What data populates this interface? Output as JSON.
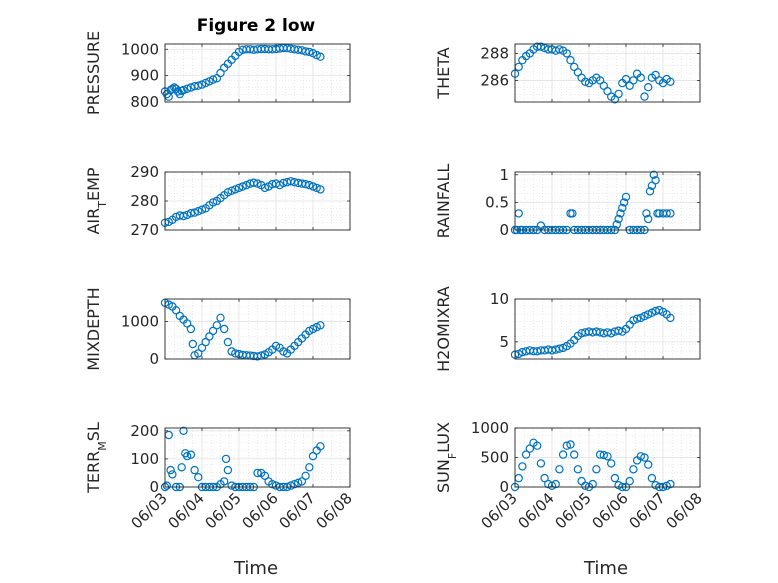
{
  "figure": {
    "title": "Figure 2 low",
    "marker_color": "#0072BD",
    "x_tick_labels": [
      "06/03",
      "06/04",
      "06/05",
      "06/06",
      "06/07",
      "06/08"
    ],
    "x_label": "Time"
  },
  "chart_data": [
    {
      "type": "scatter",
      "title": "Figure 2 low",
      "ylabel": "PRESSURE",
      "ylim": [
        800,
        1020
      ],
      "yticks": [
        800,
        900,
        1000
      ],
      "grid": true,
      "x_unit": "days since 06/03 00:00 (reading convention: 0 = 06/03, 1 = 06/04, ...)",
      "x": [
        0.0,
        0.05,
        0.1,
        0.15,
        0.2,
        0.25,
        0.3,
        0.35,
        0.4,
        0.45,
        0.5,
        0.6,
        0.7,
        0.8,
        0.9,
        1.0,
        1.1,
        1.2,
        1.3,
        1.4,
        1.5,
        1.6,
        1.7,
        1.8,
        1.9,
        2.0,
        2.1,
        2.2,
        2.3,
        2.4,
        2.5,
        2.6,
        2.7,
        2.8,
        2.9,
        3.0,
        3.1,
        3.2,
        3.3,
        3.4,
        3.5,
        3.6,
        3.7,
        3.8,
        3.9,
        4.0,
        4.1,
        4.2
      ],
      "y": [
        840,
        830,
        820,
        845,
        850,
        855,
        850,
        840,
        830,
        842,
        845,
        850,
        855,
        860,
        862,
        866,
        872,
        878,
        885,
        890,
        910,
        930,
        945,
        960,
        975,
        990,
        998,
        1000,
        1000,
        998,
        1000,
        1001,
        1001,
        1000,
        1000,
        1001,
        1003,
        1005,
        1004,
        1002,
        1000,
        998,
        996,
        992,
        990,
        985,
        978,
        972
      ]
    },
    {
      "type": "scatter",
      "ylabel": "THETA",
      "ylim": [
        284.4,
        288.7
      ],
      "yticks": [
        286,
        288
      ],
      "grid": true,
      "x": [
        0.0,
        0.1,
        0.2,
        0.3,
        0.4,
        0.5,
        0.6,
        0.7,
        0.8,
        0.9,
        1.0,
        1.1,
        1.2,
        1.3,
        1.4,
        1.5,
        1.6,
        1.7,
        1.8,
        1.9,
        2.0,
        2.1,
        2.2,
        2.3,
        2.4,
        2.5,
        2.6,
        2.7,
        2.8,
        2.9,
        3.0,
        3.1,
        3.2,
        3.3,
        3.4,
        3.5,
        3.6,
        3.7,
        3.8,
        3.9,
        4.0,
        4.1,
        4.2
      ],
      "y": [
        286.5,
        287.0,
        287.5,
        287.8,
        288.0,
        288.3,
        288.5,
        288.5,
        288.4,
        288.3,
        288.3,
        288.2,
        288.3,
        288.2,
        288.0,
        287.5,
        287.0,
        286.6,
        286.2,
        285.9,
        285.8,
        286.0,
        286.2,
        286.0,
        285.6,
        285.2,
        284.8,
        284.6,
        285.0,
        285.8,
        286.1,
        285.6,
        286.0,
        286.5,
        286.2,
        284.8,
        285.5,
        286.2,
        286.4,
        286.0,
        285.8,
        286.1,
        285.9
      ]
    },
    {
      "type": "scatter",
      "ylabel": "AIR_TEMP",
      "ylim": [
        270,
        290
      ],
      "yticks": [
        270,
        280,
        290
      ],
      "grid": true,
      "x": [
        0.0,
        0.1,
        0.2,
        0.3,
        0.4,
        0.5,
        0.6,
        0.7,
        0.8,
        0.9,
        1.0,
        1.1,
        1.2,
        1.3,
        1.4,
        1.5,
        1.6,
        1.7,
        1.8,
        1.9,
        2.0,
        2.1,
        2.2,
        2.3,
        2.4,
        2.5,
        2.6,
        2.7,
        2.8,
        2.9,
        3.0,
        3.1,
        3.2,
        3.3,
        3.4,
        3.5,
        3.6,
        3.7,
        3.8,
        3.9,
        4.0,
        4.1,
        4.2
      ],
      "y": [
        272.5,
        272.8,
        273.5,
        274.5,
        275,
        274.8,
        275.2,
        275.8,
        276,
        276.5,
        277,
        277.5,
        278.5,
        279.5,
        280,
        281,
        282,
        283,
        283.5,
        284,
        284.5,
        285,
        285.5,
        286,
        286.3,
        286,
        285.5,
        284.5,
        285,
        285.8,
        286,
        285.5,
        286.2,
        286.5,
        286.8,
        286.5,
        286.2,
        286,
        285.8,
        285.5,
        285,
        284.5,
        284
      ]
    },
    {
      "type": "scatter",
      "ylabel": "RAINFALL",
      "ylim": [
        0,
        1.05
      ],
      "yticks": [
        0,
        0.5,
        1
      ],
      "grid": true,
      "x": [
        0.0,
        0.05,
        0.1,
        0.15,
        0.2,
        0.3,
        0.4,
        0.5,
        0.6,
        0.7,
        0.8,
        0.9,
        1.0,
        1.1,
        1.2,
        1.3,
        1.4,
        1.5,
        1.55,
        1.6,
        1.7,
        1.8,
        1.9,
        2.0,
        2.1,
        2.2,
        2.3,
        2.4,
        2.5,
        2.6,
        2.7,
        2.75,
        2.8,
        2.85,
        2.9,
        2.95,
        3.0,
        3.1,
        3.2,
        3.3,
        3.4,
        3.5,
        3.55,
        3.6,
        3.65,
        3.7,
        3.75,
        3.8,
        3.85,
        3.9,
        4.0,
        4.1,
        4.2
      ],
      "y": [
        0,
        0,
        0.3,
        0,
        0,
        0,
        0,
        0,
        0,
        0.08,
        0,
        0,
        0,
        0,
        0,
        0,
        0,
        0.3,
        0.3,
        0,
        0,
        0,
        0,
        0,
        0,
        0,
        0,
        0,
        0,
        0,
        0,
        0.1,
        0.2,
        0.3,
        0.4,
        0.5,
        0.6,
        0,
        0,
        0,
        0,
        0,
        0.3,
        0.2,
        0.7,
        0.8,
        1.0,
        0.9,
        0.3,
        0.3,
        0.3,
        0.3,
        0.3
      ]
    },
    {
      "type": "scatter",
      "ylabel": "MIXDEPTH",
      "ylim": [
        0,
        1600
      ],
      "yticks": [
        0,
        1000
      ],
      "grid": true,
      "x": [
        0.0,
        0.1,
        0.2,
        0.3,
        0.4,
        0.5,
        0.6,
        0.7,
        0.75,
        0.8,
        0.9,
        1.0,
        1.1,
        1.2,
        1.3,
        1.4,
        1.5,
        1.6,
        1.7,
        1.8,
        1.9,
        2.0,
        2.1,
        2.2,
        2.3,
        2.4,
        2.5,
        2.6,
        2.7,
        2.8,
        2.9,
        3.0,
        3.1,
        3.2,
        3.3,
        3.4,
        3.5,
        3.6,
        3.7,
        3.8,
        3.9,
        4.0,
        4.1,
        4.2
      ],
      "y": [
        1500,
        1450,
        1400,
        1300,
        1150,
        1050,
        950,
        800,
        400,
        100,
        150,
        300,
        450,
        600,
        750,
        900,
        1100,
        800,
        450,
        200,
        150,
        130,
        110,
        100,
        90,
        80,
        70,
        90,
        120,
        180,
        250,
        350,
        300,
        200,
        150,
        250,
        350,
        450,
        550,
        650,
        750,
        800,
        850,
        900
      ]
    },
    {
      "type": "scatter",
      "ylabel": "H2OMIXRA",
      "ylim": [
        3,
        10
      ],
      "yticks": [
        5,
        10
      ],
      "grid": true,
      "x": [
        0.0,
        0.1,
        0.2,
        0.3,
        0.4,
        0.5,
        0.6,
        0.7,
        0.8,
        0.9,
        1.0,
        1.1,
        1.2,
        1.3,
        1.4,
        1.5,
        1.6,
        1.7,
        1.8,
        1.9,
        2.0,
        2.1,
        2.2,
        2.3,
        2.4,
        2.5,
        2.6,
        2.7,
        2.8,
        2.9,
        3.0,
        3.1,
        3.2,
        3.3,
        3.4,
        3.5,
        3.6,
        3.7,
        3.8,
        3.9,
        4.0,
        4.1,
        4.2
      ],
      "y": [
        3.5,
        3.6,
        3.8,
        3.9,
        4.0,
        3.9,
        3.9,
        4.0,
        4.0,
        4.1,
        4.0,
        4.1,
        4.2,
        4.3,
        4.5,
        4.8,
        5.2,
        5.7,
        6.0,
        6.1,
        6.2,
        6.1,
        6.2,
        6.1,
        6.0,
        6.1,
        6.0,
        6.2,
        6.3,
        6.2,
        6.5,
        7.0,
        7.5,
        7.7,
        7.8,
        8.0,
        8.2,
        8.4,
        8.6,
        8.7,
        8.5,
        8.2,
        7.8
      ]
    },
    {
      "type": "scatter",
      "ylabel": "TERR_MSL",
      "ylim": [
        0,
        210
      ],
      "yticks": [
        0,
        100,
        200
      ],
      "grid": true,
      "x": [
        0.0,
        0.05,
        0.1,
        0.15,
        0.2,
        0.3,
        0.4,
        0.45,
        0.5,
        0.55,
        0.6,
        0.7,
        0.8,
        0.9,
        1.0,
        1.1,
        1.2,
        1.3,
        1.4,
        1.5,
        1.6,
        1.65,
        1.7,
        1.8,
        1.9,
        2.0,
        2.1,
        2.2,
        2.3,
        2.4,
        2.5,
        2.6,
        2.7,
        2.8,
        2.9,
        3.0,
        3.1,
        3.2,
        3.3,
        3.4,
        3.5,
        3.6,
        3.7,
        3.8,
        3.9,
        4.0,
        4.1,
        4.2
      ],
      "y": [
        0,
        5,
        185,
        60,
        45,
        0,
        0,
        70,
        200,
        120,
        110,
        115,
        60,
        35,
        0,
        0,
        0,
        0,
        0,
        10,
        20,
        100,
        60,
        5,
        0,
        0,
        0,
        0,
        0,
        0,
        50,
        50,
        40,
        20,
        10,
        5,
        0,
        0,
        0,
        5,
        10,
        15,
        20,
        40,
        70,
        110,
        130,
        145
      ]
    },
    {
      "type": "scatter",
      "ylabel": "SUN_FLUX",
      "ylim": [
        0,
        1000
      ],
      "yticks": [
        0,
        500,
        1000
      ],
      "grid": true,
      "x": [
        0.0,
        0.1,
        0.2,
        0.3,
        0.4,
        0.5,
        0.6,
        0.7,
        0.8,
        0.9,
        1.0,
        1.1,
        1.2,
        1.3,
        1.4,
        1.5,
        1.6,
        1.7,
        1.8,
        1.9,
        2.0,
        2.1,
        2.2,
        2.3,
        2.4,
        2.5,
        2.6,
        2.7,
        2.8,
        2.9,
        3.0,
        3.1,
        3.2,
        3.3,
        3.4,
        3.5,
        3.6,
        3.7,
        3.8,
        3.9,
        4.0,
        4.1,
        4.2
      ],
      "y": [
        0,
        150,
        350,
        550,
        650,
        750,
        700,
        400,
        150,
        50,
        20,
        50,
        300,
        550,
        700,
        720,
        550,
        300,
        100,
        20,
        0,
        50,
        300,
        550,
        540,
        520,
        400,
        150,
        30,
        0,
        0,
        100,
        300,
        450,
        520,
        500,
        380,
        150,
        30,
        0,
        0,
        20,
        50
      ]
    }
  ]
}
